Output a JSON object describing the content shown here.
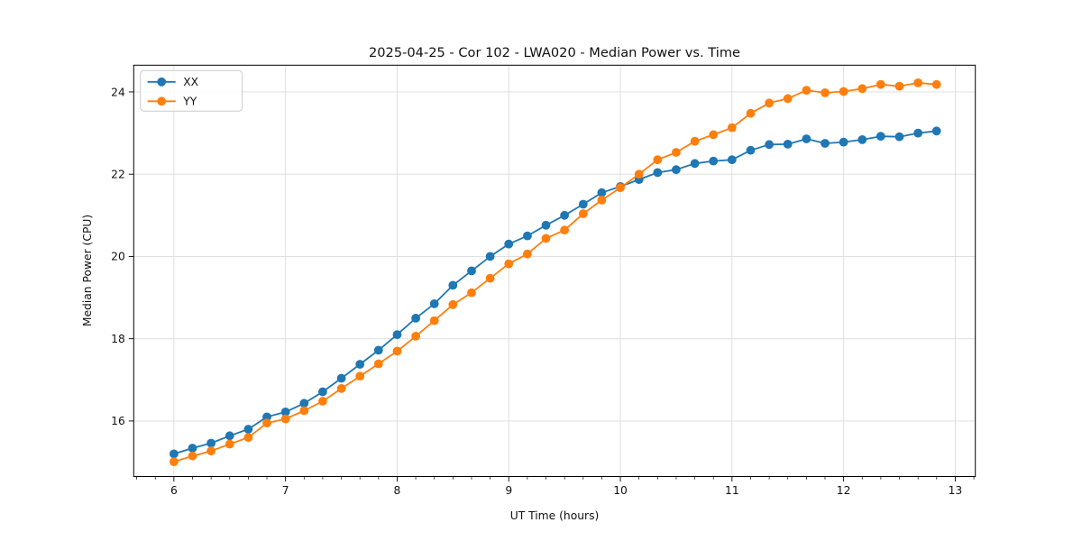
{
  "figure": {
    "title": "2025-04-25 - Cor 102 - LWA020 - Median Power vs. Time",
    "xlabel": "UT Time (hours)",
    "ylabel": "Median Power (CPU)"
  },
  "chart_data": {
    "type": "line",
    "title": "2025-04-25 - Cor 102 - LWA020 - Median Power vs. Time",
    "xlabel": "UT Time (hours)",
    "ylabel": "Median Power (CPU)",
    "xlim": [
      5.64,
      13.18
    ],
    "ylim": [
      14.65,
      24.65
    ],
    "xticks": [
      6,
      7,
      8,
      9,
      10,
      11,
      12,
      13
    ],
    "yticks": [
      16,
      18,
      20,
      22,
      24
    ],
    "x_minor_step": 0.166667,
    "grid": true,
    "grid_color": "#dcdcdc",
    "legend_position": "upper left",
    "background": "#ffffff",
    "spine_color": "#000000",
    "x": [
      6.0,
      6.167,
      6.333,
      6.5,
      6.667,
      6.833,
      7.0,
      7.167,
      7.333,
      7.5,
      7.667,
      7.833,
      8.0,
      8.167,
      8.333,
      8.5,
      8.667,
      8.833,
      9.0,
      9.167,
      9.333,
      9.5,
      9.667,
      9.833,
      10.0,
      10.167,
      10.333,
      10.5,
      10.667,
      10.833,
      11.0,
      11.167,
      11.333,
      11.5,
      11.667,
      11.833,
      12.0,
      12.167,
      12.333,
      12.5,
      12.667,
      12.833
    ],
    "series": [
      {
        "name": "XX",
        "color": "#1f77b4",
        "values": [
          15.2,
          15.34,
          15.46,
          15.64,
          15.8,
          16.1,
          16.22,
          16.43,
          16.71,
          17.04,
          17.38,
          17.72,
          18.1,
          18.5,
          18.85,
          19.3,
          19.65,
          20.0,
          20.3,
          20.5,
          20.76,
          21.0,
          21.27,
          21.55,
          21.7,
          21.87,
          22.04,
          22.11,
          22.26,
          22.32,
          22.35,
          22.58,
          22.72,
          22.73,
          22.86,
          22.75,
          22.78,
          22.84,
          22.92,
          22.91,
          23.0,
          23.05
        ]
      },
      {
        "name": "YY",
        "color": "#ff7f0e",
        "values": [
          15.01,
          15.15,
          15.27,
          15.44,
          15.6,
          15.95,
          16.05,
          16.25,
          16.48,
          16.79,
          17.09,
          17.39,
          17.7,
          18.06,
          18.44,
          18.83,
          19.12,
          19.47,
          19.82,
          20.06,
          20.44,
          20.64,
          21.04,
          21.37,
          21.67,
          22.0,
          22.35,
          22.53,
          22.8,
          22.96,
          23.13,
          23.48,
          23.73,
          23.84,
          24.04,
          23.98,
          24.01,
          24.08,
          24.18,
          24.14,
          24.22,
          24.18
        ]
      }
    ]
  }
}
